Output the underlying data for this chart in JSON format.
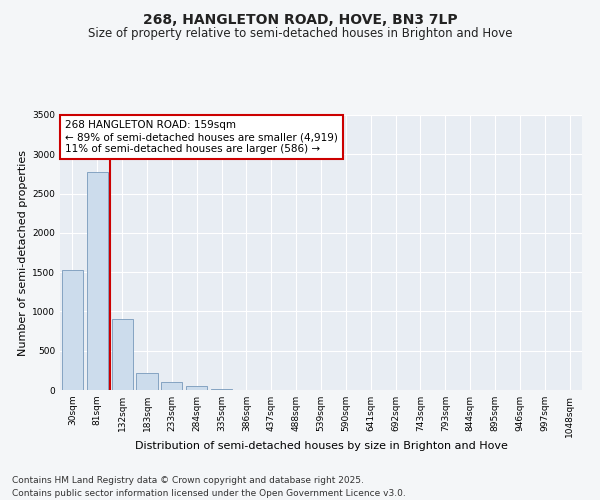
{
  "title_line1": "268, HANGLETON ROAD, HOVE, BN3 7LP",
  "title_line2": "Size of property relative to semi-detached houses in Brighton and Hove",
  "xlabel": "Distribution of semi-detached houses by size in Brighton and Hove",
  "ylabel": "Number of semi-detached properties",
  "categories": [
    "30sqm",
    "81sqm",
    "132sqm",
    "183sqm",
    "233sqm",
    "284sqm",
    "335sqm",
    "386sqm",
    "437sqm",
    "488sqm",
    "539sqm",
    "590sqm",
    "641sqm",
    "692sqm",
    "743sqm",
    "793sqm",
    "844sqm",
    "895sqm",
    "946sqm",
    "997sqm",
    "1048sqm"
  ],
  "values": [
    1530,
    2780,
    900,
    215,
    100,
    50,
    15,
    5,
    0,
    0,
    0,
    0,
    0,
    0,
    0,
    0,
    0,
    0,
    0,
    0,
    0
  ],
  "bar_color": "#ccdcec",
  "bar_edge_color": "#7799bb",
  "vline_color": "#cc0000",
  "vline_x": 1.5,
  "ylim": [
    0,
    3500
  ],
  "yticks": [
    0,
    500,
    1000,
    1500,
    2000,
    2500,
    3000,
    3500
  ],
  "annotation_title": "268 HANGLETON ROAD: 159sqm",
  "annotation_line1": "← 89% of semi-detached houses are smaller (4,919)",
  "annotation_line2": "11% of semi-detached houses are larger (586) →",
  "annotation_box_facecolor": "#ffffff",
  "annotation_box_edgecolor": "#cc0000",
  "footer_line1": "Contains HM Land Registry data © Crown copyright and database right 2025.",
  "footer_line2": "Contains public sector information licensed under the Open Government Licence v3.0.",
  "fig_facecolor": "#f4f6f8",
  "plot_facecolor": "#e8edf3",
  "grid_color": "#ffffff",
  "title_fontsize": 10,
  "subtitle_fontsize": 8.5,
  "tick_fontsize": 6.5,
  "label_fontsize": 8,
  "annot_fontsize": 7.5,
  "footer_fontsize": 6.5
}
